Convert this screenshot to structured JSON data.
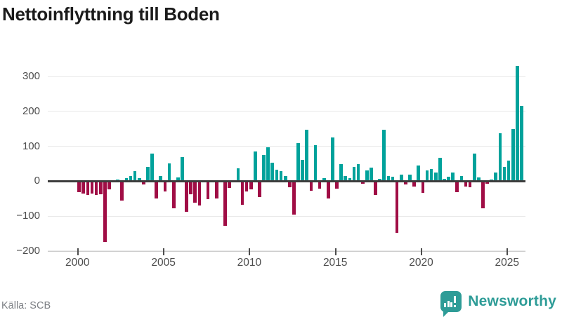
{
  "title": "Nettoinflyttning till Boden",
  "source": "Källa: SCB",
  "logo": {
    "text": "Newsworthy",
    "icon": "speech-bubble-bar-chart-icon"
  },
  "colors": {
    "positive_bar": "#00a29b",
    "negative_bar": "#a00d45",
    "title_text": "#1b1b1b",
    "axis_text": "#4d4d4d",
    "source_text": "#7c7f84",
    "gridline": "#e8e8e8",
    "zero_line": "#3d3d3d",
    "axis_line": "#cccccc",
    "logo_teal": "#2e9c97"
  },
  "chart_data": {
    "type": "bar",
    "title": "Nettoinflyttning till Boden",
    "xlabel": "",
    "ylabel": "",
    "legend": "none",
    "grid": "horizontal",
    "frequency": "quarterly",
    "start_period": "2000-Q1",
    "end_period": "2025-Q4",
    "ylim": [
      -200,
      340
    ],
    "y_ticks": [
      {
        "value": 300,
        "label": "300"
      },
      {
        "value": 200,
        "label": "200"
      },
      {
        "value": 100,
        "label": "100"
      },
      {
        "value": 0,
        "label": "0"
      },
      {
        "value": -100,
        "label": "−100"
      },
      {
        "value": -200,
        "label": "−200"
      }
    ],
    "x_ticks": [
      {
        "year": 2000,
        "label": "2000"
      },
      {
        "year": 2005,
        "label": "2005"
      },
      {
        "year": 2010,
        "label": "2010"
      },
      {
        "year": 2015,
        "label": "2015"
      },
      {
        "year": 2020,
        "label": "2020"
      },
      {
        "year": 2025,
        "label": "2025"
      }
    ],
    "values": [
      -32,
      -35,
      -39,
      -35,
      -39,
      -38,
      -175,
      -24,
      0,
      4,
      -56,
      8,
      15,
      28,
      8,
      -10,
      41,
      80,
      -49,
      15,
      -29,
      50,
      -78,
      10,
      68,
      -87,
      -37,
      -62,
      -70,
      2,
      -52,
      2,
      -49,
      0,
      -129,
      -20,
      0,
      37,
      -68,
      -29,
      -24,
      85,
      -45,
      75,
      98,
      52,
      33,
      29,
      15,
      -17,
      -95,
      110,
      60,
      148,
      -27,
      103,
      -22,
      9,
      -49,
      125,
      -22,
      49,
      15,
      8,
      40,
      49,
      -8,
      30,
      38,
      -40,
      7,
      148,
      15,
      12,
      -149,
      18,
      -10,
      18,
      -15,
      45,
      -34,
      30,
      35,
      25,
      67,
      7,
      12,
      25,
      -32,
      15,
      -15,
      -17,
      80,
      11,
      -78,
      -7,
      5,
      25,
      137,
      41,
      59,
      150,
      330,
      215
    ]
  }
}
